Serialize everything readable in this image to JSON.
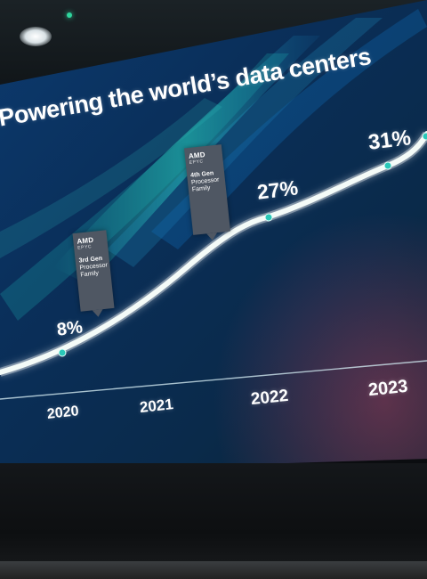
{
  "slide": {
    "title": "Powering the world’s data centers",
    "points": [
      {
        "year": "2020",
        "share_label": "8%"
      },
      {
        "year": "2021",
        "share_label": ""
      },
      {
        "year": "2022",
        "share_label": "27%"
      },
      {
        "year": "2023",
        "share_label": "31%"
      }
    ],
    "callouts": [
      {
        "brand": "AMD",
        "sub": "EPYC",
        "gen": "3rd Gen",
        "line2": "Processor",
        "line3": "Family"
      },
      {
        "brand": "AMD",
        "sub": "EPYC",
        "gen": "4th Gen",
        "line2": "Processor",
        "line3": "Family"
      }
    ],
    "colors": {
      "curve": "#f4fbf8",
      "marker": "#2ac7b8",
      "callout": "#4f5763",
      "background": "#0a2f5a"
    }
  }
}
